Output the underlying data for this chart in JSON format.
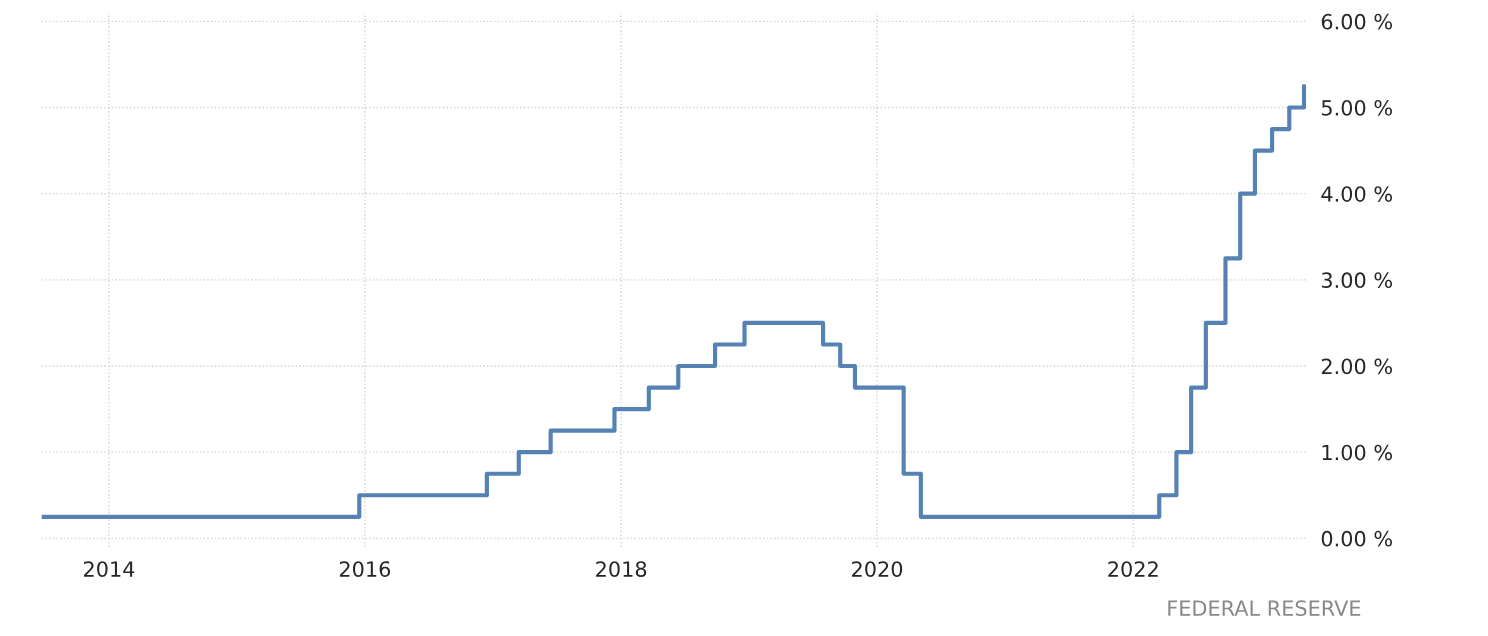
{
  "chart_data": {
    "type": "step",
    "x": [
      "2013-06-23",
      "2015-12-16",
      "2016-12-14",
      "2017-03-15",
      "2017-06-14",
      "2017-12-13",
      "2018-03-21",
      "2018-06-13",
      "2018-09-26",
      "2018-12-19",
      "2019-07-31",
      "2019-09-18",
      "2019-10-30",
      "2020-03-17",
      "2020-05-05",
      "2022-03-16",
      "2022-05-04",
      "2022-06-15",
      "2022-07-27",
      "2022-09-21",
      "2022-11-02",
      "2022-12-14",
      "2023-02-01",
      "2023-03-22",
      "2023-05-03"
    ],
    "series": [
      {
        "color": "#5582b3",
        "values": [
          0.25,
          0.5,
          0.75,
          1.0,
          1.25,
          1.5,
          1.75,
          2.0,
          2.25,
          2.5,
          2.25,
          2.0,
          1.75,
          0.75,
          0.25,
          0.5,
          1.0,
          1.75,
          2.5,
          3.25,
          4.0,
          4.5,
          4.75,
          5.0,
          5.25
        ]
      }
    ],
    "xlim": [
      "2013-06-23",
      "2023-05-10"
    ],
    "xticks": [
      {
        "value": "2014-01-01",
        "label": "2014"
      },
      {
        "value": "2016-01-01",
        "label": "2016"
      },
      {
        "value": "2018-01-01",
        "label": "2018"
      },
      {
        "value": "2020-01-01",
        "label": "2020"
      },
      {
        "value": "2022-01-01",
        "label": "2022"
      }
    ],
    "ylim": [
      -0.1,
      6.1
    ],
    "yticks": [
      {
        "value": 0,
        "label": "0.00 %"
      },
      {
        "value": 1,
        "label": "1.00 %"
      },
      {
        "value": 2,
        "label": "2.00 %"
      },
      {
        "value": 3,
        "label": "3.00 %"
      },
      {
        "value": 4,
        "label": "4.00 %"
      },
      {
        "value": 5,
        "label": "5.00 %"
      },
      {
        "value": 6,
        "label": "6.00 %"
      }
    ],
    "grid": true,
    "legend": false,
    "annotations": [
      "FEDERAL RESERVE"
    ]
  }
}
